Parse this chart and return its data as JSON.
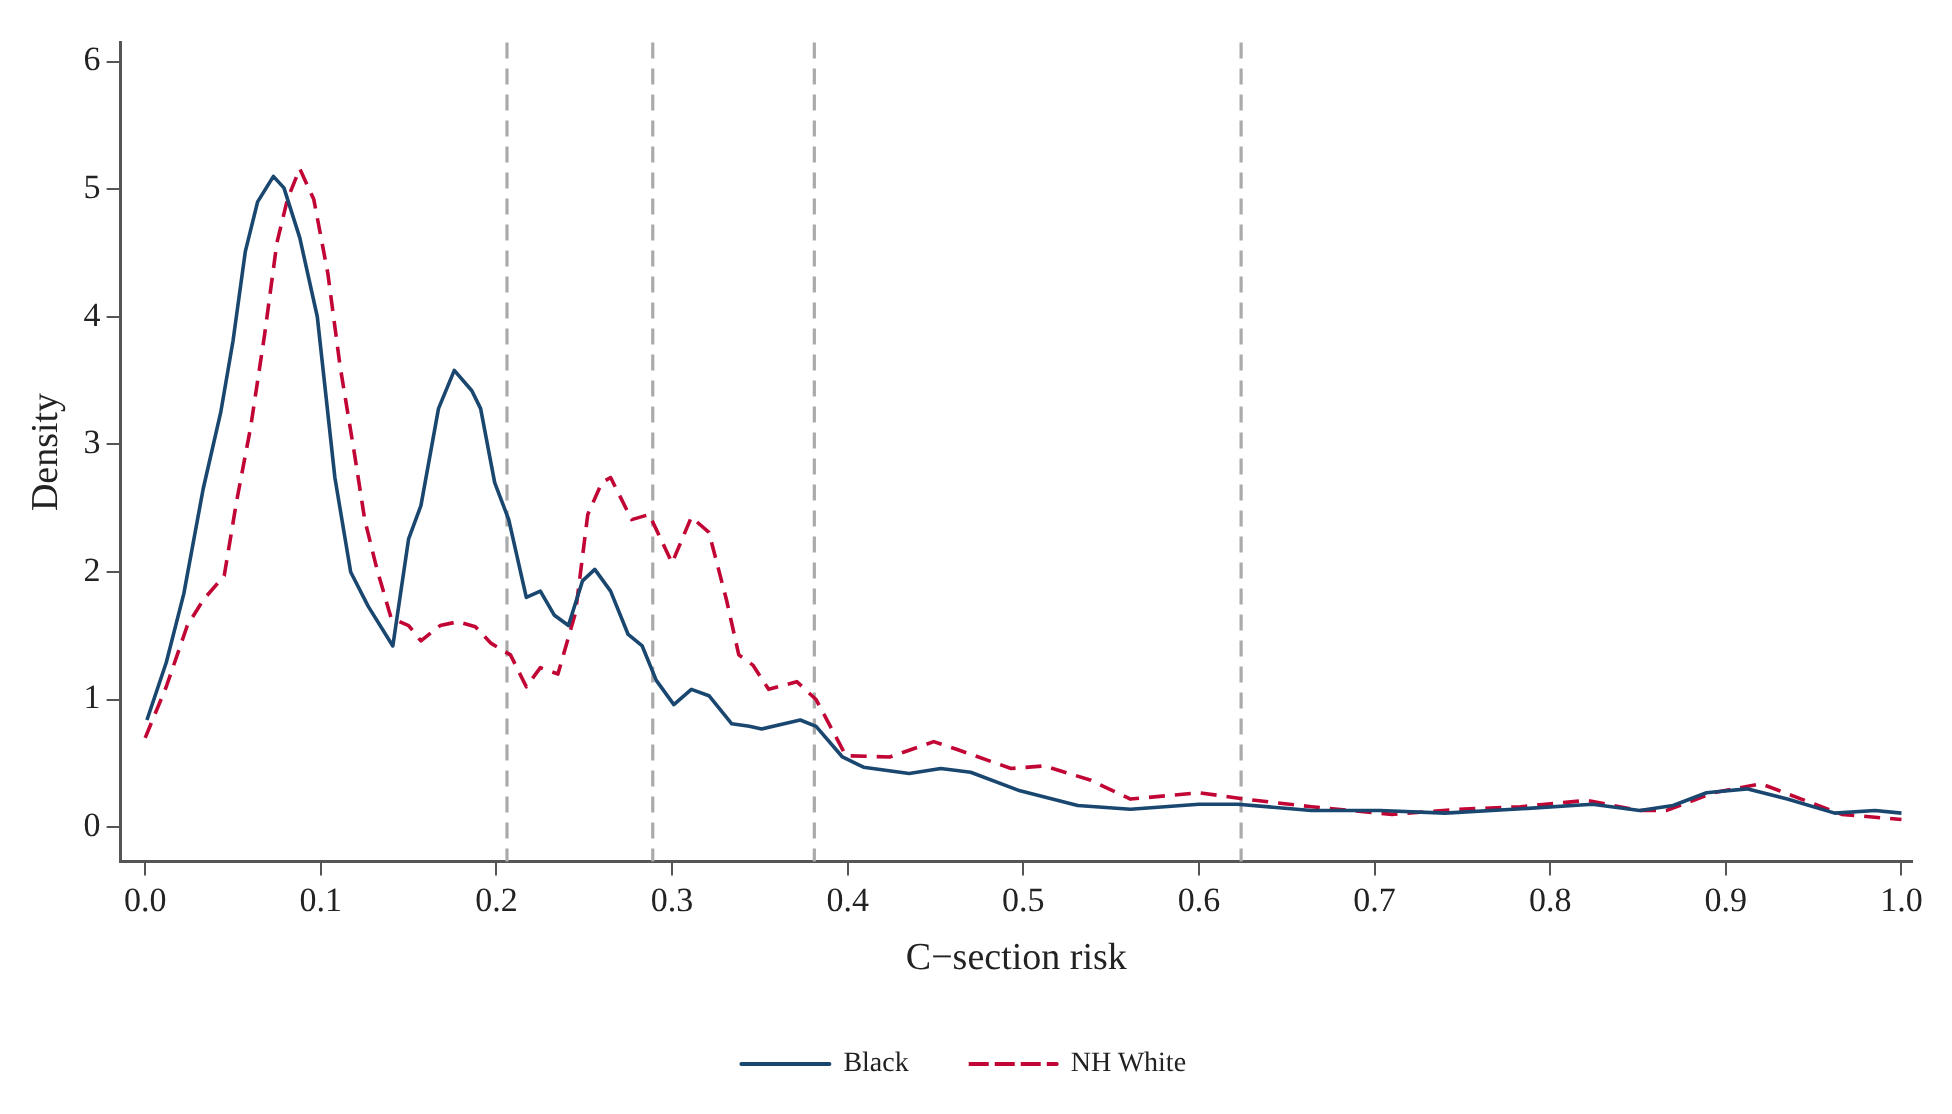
{
  "chart_data": {
    "type": "line",
    "xlabel": "C−section risk",
    "ylabel": "Density",
    "xlim": [
      -0.014,
      1.006
    ],
    "ylim": [
      -0.27,
      6.15
    ],
    "xticks": [
      {
        "value": 0,
        "label": "0.0"
      },
      0.1,
      0.2,
      0.3,
      0.4,
      0.5,
      0.6,
      0.7,
      0.8,
      0.9,
      {
        "value": 1,
        "label": "1.0"
      }
    ],
    "yticks": [
      0,
      1,
      2,
      3,
      4,
      5,
      6
    ],
    "grid": false,
    "legend": "bottom",
    "marker": "none",
    "ref_lines": [
      {
        "axis": "x",
        "value": 0.206,
        "color": "#aaaaaa",
        "line_style": "dashed"
      },
      {
        "axis": "x",
        "value": 0.289,
        "color": "#aaaaaa",
        "line_style": "dashed"
      },
      {
        "axis": "x",
        "value": 0.381,
        "color": "#aaaaaa",
        "line_style": "dashed"
      },
      {
        "axis": "x",
        "value": 0.624,
        "color": "#aaaaaa",
        "line_style": "dashed"
      }
    ],
    "series": [
      {
        "name": "Black",
        "color": "#1a476f",
        "line_style": "solid",
        "x": [
          0.001,
          0.012,
          0.022,
          0.033,
          0.043,
          0.05,
          0.057,
          0.064,
          0.073,
          0.079,
          0.088,
          0.098,
          0.108,
          0.117,
          0.127,
          0.141,
          0.15,
          0.157,
          0.167,
          0.176,
          0.186,
          0.191,
          0.199,
          0.207,
          0.217,
          0.225,
          0.233,
          0.241,
          0.249,
          0.256,
          0.265,
          0.275,
          0.283,
          0.291,
          0.301,
          0.311,
          0.321,
          0.334,
          0.344,
          0.351,
          0.373,
          0.382,
          0.397,
          0.409,
          0.435,
          0.453,
          0.47,
          0.497,
          0.531,
          0.561,
          0.6,
          0.622,
          0.664,
          0.703,
          0.74,
          0.779,
          0.824,
          0.851,
          0.87,
          0.889,
          0.912,
          0.935,
          0.962,
          0.985,
          1.0
        ],
        "values": [
          0.84,
          1.29,
          1.83,
          2.65,
          3.25,
          3.81,
          4.51,
          4.9,
          5.1,
          5.01,
          4.62,
          4.0,
          2.74,
          2.0,
          1.73,
          1.42,
          2.26,
          2.52,
          3.28,
          3.58,
          3.42,
          3.28,
          2.7,
          2.41,
          1.8,
          1.85,
          1.66,
          1.58,
          1.93,
          2.02,
          1.85,
          1.51,
          1.42,
          1.15,
          0.96,
          1.08,
          1.03,
          0.81,
          0.79,
          0.77,
          0.84,
          0.79,
          0.55,
          0.47,
          0.42,
          0.46,
          0.43,
          0.29,
          0.17,
          0.14,
          0.18,
          0.18,
          0.13,
          0.13,
          0.11,
          0.14,
          0.18,
          0.13,
          0.17,
          0.27,
          0.3,
          0.22,
          0.11,
          0.13,
          0.11
        ]
      },
      {
        "name": "NH White",
        "color": "#c10534",
        "line_style": "dashed",
        "x": [
          0,
          0.012,
          0.024,
          0.033,
          0.045,
          0.052,
          0.06,
          0.068,
          0.075,
          0.081,
          0.088,
          0.096,
          0.104,
          0.111,
          0.119,
          0.125,
          0.132,
          0.14,
          0.15,
          0.157,
          0.168,
          0.178,
          0.188,
          0.197,
          0.208,
          0.217,
          0.225,
          0.235,
          0.245,
          0.252,
          0.26,
          0.265,
          0.277,
          0.287,
          0.3,
          0.311,
          0.321,
          0.331,
          0.338,
          0.346,
          0.355,
          0.371,
          0.382,
          0.399,
          0.424,
          0.449,
          0.462,
          0.493,
          0.512,
          0.538,
          0.561,
          0.6,
          0.626,
          0.664,
          0.71,
          0.748,
          0.783,
          0.821,
          0.851,
          0.866,
          0.893,
          0.92,
          0.943,
          0.966,
          1.0
        ],
        "values": [
          0.7,
          1.1,
          1.58,
          1.78,
          1.97,
          2.55,
          3.13,
          3.86,
          4.58,
          4.92,
          5.16,
          4.92,
          4.34,
          3.61,
          2.94,
          2.41,
          2.02,
          1.64,
          1.58,
          1.46,
          1.58,
          1.61,
          1.57,
          1.44,
          1.35,
          1.1,
          1.25,
          1.2,
          1.68,
          2.45,
          2.7,
          2.74,
          2.41,
          2.45,
          2.07,
          2.43,
          2.31,
          1.78,
          1.35,
          1.27,
          1.08,
          1.14,
          1.0,
          0.56,
          0.55,
          0.67,
          0.61,
          0.46,
          0.48,
          0.37,
          0.22,
          0.27,
          0.22,
          0.16,
          0.1,
          0.14,
          0.16,
          0.21,
          0.13,
          0.13,
          0.27,
          0.34,
          0.22,
          0.1,
          0.06
        ]
      }
    ]
  }
}
